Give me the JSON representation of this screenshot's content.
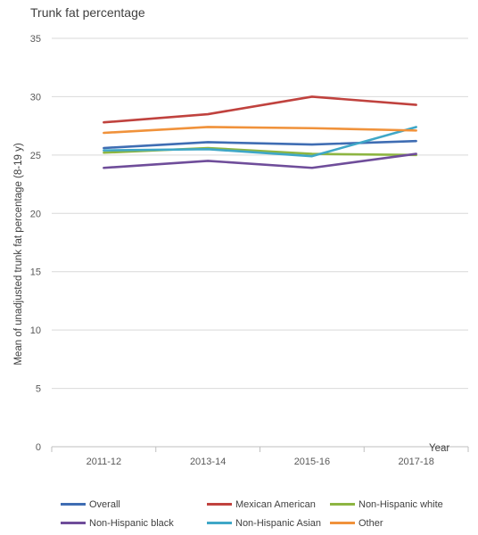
{
  "chart_data": {
    "type": "line",
    "title": "Trunk fat percentage",
    "xlabel": "Year",
    "ylabel": "Mean of unadjusted trunk fat percentage (8-19 y)",
    "categories": [
      "2011-12",
      "2013-14",
      "2015-16",
      "2017-18"
    ],
    "ylim": [
      0,
      35
    ],
    "yticks": [
      0,
      5,
      10,
      15,
      20,
      25,
      30,
      35
    ],
    "grid": "horizontal",
    "legend_position": "bottom",
    "series": [
      {
        "name": "Overall",
        "color": "#3f6db3",
        "values": [
          25.6,
          26.1,
          25.9,
          26.2
        ]
      },
      {
        "name": "Mexican American",
        "color": "#c0423e",
        "values": [
          27.8,
          28.5,
          30.0,
          29.3
        ]
      },
      {
        "name": "Non-Hispanic white",
        "color": "#8db542",
        "values": [
          25.2,
          25.6,
          25.1,
          25.0
        ]
      },
      {
        "name": "Non-Hispanic black",
        "color": "#6f4d9a",
        "values": [
          23.9,
          24.5,
          23.9,
          25.1
        ]
      },
      {
        "name": "Non-Hispanic Asian",
        "color": "#3fa7c7",
        "values": [
          25.4,
          25.5,
          24.9,
          27.4
        ]
      },
      {
        "name": "Other",
        "color": "#f0923b",
        "values": [
          26.9,
          27.4,
          27.3,
          27.1
        ]
      }
    ]
  }
}
